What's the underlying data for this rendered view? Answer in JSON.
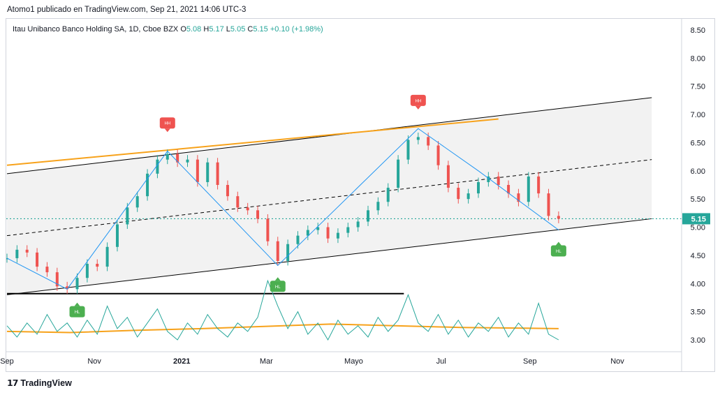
{
  "header": {
    "publish_line": "Atomo1 publicado en TradingView.com, Sep 21, 2021 14:06 UTC-3"
  },
  "legend": {
    "symbol": "Itau Unibanco Banco Holding SA, 1D, Cboe BZX",
    "open_label": "O",
    "open": "5.08",
    "high_label": "H",
    "high": "5.17",
    "low_label": "L",
    "low": "5.05",
    "close_label": "C",
    "close": "5.15",
    "change": "+0.10 (+1.98%)"
  },
  "footer": {
    "brand": "TradingView",
    "logo_icon": "tradingview-logo-icon"
  },
  "colors": {
    "up": "#26a69a",
    "down": "#ef5350",
    "zigzag": "#2196f3",
    "orange": "#f7a21b",
    "price_label_bg": "#26a69a",
    "channel_fill": "#f2f2f2",
    "label_hh": "#ef5350",
    "label_hl": "#4caf50"
  },
  "chart_data": {
    "type": "line",
    "title": "",
    "xlabel": "",
    "ylabel": "",
    "ylim": [
      2.8,
      8.65
    ],
    "y_ticks": [
      "8.50",
      "8.00",
      "7.50",
      "7.00",
      "6.50",
      "6.00",
      "5.50",
      "5.00",
      "4.50",
      "4.00",
      "3.50",
      "3.00"
    ],
    "x_ticks": [
      {
        "label": "Sep",
        "date": "2020-09-01"
      },
      {
        "label": "Nov",
        "date": "2020-11-01"
      },
      {
        "label": "2021",
        "date": "2021-01-01"
      },
      {
        "label": "Mar",
        "date": "2021-03-01"
      },
      {
        "label": "Mayo",
        "date": "2021-05-01"
      },
      {
        "label": "Jul",
        "date": "2021-07-01"
      },
      {
        "label": "Sep",
        "date": "2021-09-01"
      },
      {
        "label": "Nov",
        "date": "2021-11-01"
      }
    ],
    "last_price": "5.15",
    "last_price_line": 5.15,
    "series": [
      {
        "name": "Close",
        "values": [
          [
            "2020-09-01",
            4.45
          ],
          [
            "2020-09-08",
            4.6
          ],
          [
            "2020-09-15",
            4.55
          ],
          [
            "2020-09-22",
            4.3
          ],
          [
            "2020-09-29",
            4.2
          ],
          [
            "2020-10-06",
            3.95
          ],
          [
            "2020-10-13",
            3.9
          ],
          [
            "2020-10-20",
            4.1
          ],
          [
            "2020-10-27",
            4.35
          ],
          [
            "2020-11-03",
            4.3
          ],
          [
            "2020-11-10",
            4.65
          ],
          [
            "2020-11-17",
            5.05
          ],
          [
            "2020-11-24",
            5.35
          ],
          [
            "2020-12-01",
            5.55
          ],
          [
            "2020-12-08",
            5.95
          ],
          [
            "2020-12-15",
            6.2
          ],
          [
            "2020-12-22",
            6.3
          ],
          [
            "2020-12-29",
            6.15
          ],
          [
            "2021-01-05",
            6.2
          ],
          [
            "2021-01-12",
            5.8
          ],
          [
            "2021-01-19",
            6.15
          ],
          [
            "2021-01-26",
            5.75
          ],
          [
            "2021-02-02",
            5.55
          ],
          [
            "2021-02-09",
            5.35
          ],
          [
            "2021-02-16",
            5.3
          ],
          [
            "2021-02-23",
            5.15
          ],
          [
            "2021-03-02",
            4.75
          ],
          [
            "2021-03-09",
            4.4
          ],
          [
            "2021-03-16",
            4.7
          ],
          [
            "2021-03-23",
            4.85
          ],
          [
            "2021-03-30",
            4.95
          ],
          [
            "2021-04-06",
            5.0
          ],
          [
            "2021-04-13",
            4.8
          ],
          [
            "2021-04-20",
            4.9
          ],
          [
            "2021-04-27",
            5.0
          ],
          [
            "2021-05-04",
            5.1
          ],
          [
            "2021-05-11",
            5.3
          ],
          [
            "2021-05-18",
            5.45
          ],
          [
            "2021-05-25",
            5.7
          ],
          [
            "2021-06-01",
            6.2
          ],
          [
            "2021-06-08",
            6.55
          ],
          [
            "2021-06-15",
            6.6
          ],
          [
            "2021-06-22",
            6.45
          ],
          [
            "2021-06-29",
            6.1
          ],
          [
            "2021-07-06",
            5.7
          ],
          [
            "2021-07-13",
            5.5
          ],
          [
            "2021-07-20",
            5.6
          ],
          [
            "2021-07-27",
            5.8
          ],
          [
            "2021-08-03",
            5.9
          ],
          [
            "2021-08-10",
            5.75
          ],
          [
            "2021-08-17",
            5.6
          ],
          [
            "2021-08-24",
            5.45
          ],
          [
            "2021-08-31",
            5.9
          ],
          [
            "2021-09-07",
            5.6
          ],
          [
            "2021-09-14",
            5.2
          ],
          [
            "2021-09-21",
            5.15
          ]
        ]
      },
      {
        "name": "Indicator",
        "values": [
          [
            "2020-09-01",
            3.25
          ],
          [
            "2020-09-08",
            3.05
          ],
          [
            "2020-09-15",
            3.3
          ],
          [
            "2020-09-22",
            3.1
          ],
          [
            "2020-09-29",
            3.45
          ],
          [
            "2020-10-06",
            3.15
          ],
          [
            "2020-10-13",
            3.3
          ],
          [
            "2020-10-20",
            3.05
          ],
          [
            "2020-10-27",
            3.35
          ],
          [
            "2020-11-03",
            3.1
          ],
          [
            "2020-11-10",
            3.6
          ],
          [
            "2020-11-17",
            3.2
          ],
          [
            "2020-11-24",
            3.4
          ],
          [
            "2020-12-01",
            3.05
          ],
          [
            "2020-12-08",
            3.3
          ],
          [
            "2020-12-15",
            3.55
          ],
          [
            "2020-12-22",
            3.15
          ],
          [
            "2020-12-29",
            3.0
          ],
          [
            "2021-01-05",
            3.3
          ],
          [
            "2021-01-12",
            3.1
          ],
          [
            "2021-01-19",
            3.45
          ],
          [
            "2021-01-26",
            3.2
          ],
          [
            "2021-02-02",
            3.05
          ],
          [
            "2021-02-09",
            3.3
          ],
          [
            "2021-02-16",
            3.15
          ],
          [
            "2021-02-23",
            3.4
          ],
          [
            "2021-03-02",
            4.05
          ],
          [
            "2021-03-09",
            3.6
          ],
          [
            "2021-03-16",
            3.2
          ],
          [
            "2021-03-23",
            3.5
          ],
          [
            "2021-03-30",
            3.1
          ],
          [
            "2021-04-06",
            3.3
          ],
          [
            "2021-04-13",
            3.0
          ],
          [
            "2021-04-20",
            3.35
          ],
          [
            "2021-04-27",
            3.1
          ],
          [
            "2021-05-04",
            3.25
          ],
          [
            "2021-05-11",
            3.05
          ],
          [
            "2021-05-18",
            3.4
          ],
          [
            "2021-05-25",
            3.15
          ],
          [
            "2021-06-01",
            3.35
          ],
          [
            "2021-06-08",
            3.8
          ],
          [
            "2021-06-15",
            3.3
          ],
          [
            "2021-06-22",
            3.15
          ],
          [
            "2021-06-29",
            3.45
          ],
          [
            "2021-07-06",
            3.1
          ],
          [
            "2021-07-13",
            3.35
          ],
          [
            "2021-07-20",
            3.05
          ],
          [
            "2021-07-27",
            3.3
          ],
          [
            "2021-08-03",
            3.15
          ],
          [
            "2021-08-10",
            3.4
          ],
          [
            "2021-08-17",
            3.05
          ],
          [
            "2021-08-24",
            3.3
          ],
          [
            "2021-08-31",
            3.1
          ],
          [
            "2021-09-07",
            3.65
          ],
          [
            "2021-09-14",
            3.1
          ],
          [
            "2021-09-21",
            3.0
          ]
        ]
      },
      {
        "name": "Indicator MA",
        "values": [
          [
            "2020-09-01",
            3.15
          ],
          [
            "2020-10-15",
            3.13
          ],
          [
            "2020-12-01",
            3.17
          ],
          [
            "2021-01-15",
            3.2
          ],
          [
            "2021-03-01",
            3.24
          ],
          [
            "2021-04-15",
            3.28
          ],
          [
            "2021-06-01",
            3.25
          ],
          [
            "2021-07-15",
            3.22
          ],
          [
            "2021-09-21",
            3.2
          ]
        ]
      }
    ],
    "zigzag": [
      [
        "2020-09-01",
        4.45
      ],
      [
        "2020-10-13",
        3.9
      ],
      [
        "2020-12-22",
        6.35
      ],
      [
        "2021-03-09",
        4.32
      ],
      [
        "2021-06-15",
        6.75
      ],
      [
        "2021-07-27",
        6.0
      ],
      [
        "2021-09-21",
        4.95
      ]
    ],
    "channel": {
      "upper": [
        [
          "2020-09-01",
          5.95
        ],
        [
          "2021-11-25",
          7.3
        ]
      ],
      "middle": [
        [
          "2020-09-01",
          4.85
        ],
        [
          "2021-11-25",
          6.2
        ]
      ],
      "lower": [
        [
          "2020-09-01",
          3.8
        ],
        [
          "2021-11-25",
          5.15
        ]
      ]
    },
    "orange_trendline": [
      [
        "2020-09-01",
        6.1
      ],
      [
        "2021-08-10",
        6.92
      ]
    ],
    "support_line": [
      [
        "2020-09-01",
        3.82
      ],
      [
        "2021-06-05",
        3.82
      ]
    ],
    "pivot_labels": [
      {
        "text": "HH",
        "date": "2020-12-22",
        "value": 6.85
      },
      {
        "text": "HH",
        "date": "2021-06-15",
        "value": 7.25
      },
      {
        "text": "HL",
        "date": "2020-10-20",
        "value": 3.5
      },
      {
        "text": "HL",
        "date": "2021-03-09",
        "value": 3.95
      },
      {
        "text": "HL",
        "date": "2021-09-21",
        "value": 4.58
      }
    ]
  }
}
